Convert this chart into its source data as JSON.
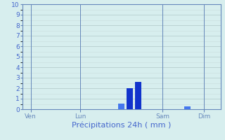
{
  "xlabel": "Précipitations 24h ( mm )",
  "ylim": [
    0,
    10
  ],
  "yticks": [
    0,
    1,
    2,
    3,
    4,
    5,
    6,
    7,
    8,
    9,
    10
  ],
  "background_color": "#d7eeee",
  "grid_color": "#b0c8c8",
  "grid_color_minor": "#c8dcdc",
  "text_color": "#4466cc",
  "spine_color": "#6688bb",
  "total_bars": 24,
  "xtick_labels": [
    "Ven",
    "Lun",
    "Sam",
    "Dim"
  ],
  "xtick_positions": [
    1,
    7,
    17,
    22
  ],
  "vline_positions": [
    1,
    7,
    17,
    22
  ],
  "bars": [
    {
      "x": 12,
      "height": 0.55,
      "color": "#4477ee"
    },
    {
      "x": 13,
      "height": 2.0,
      "color": "#1133cc"
    },
    {
      "x": 14,
      "height": 2.6,
      "color": "#1133cc"
    },
    {
      "x": 20,
      "height": 0.3,
      "color": "#4477ee"
    }
  ],
  "bar_width": 0.8,
  "xlabel_fontsize": 8,
  "tick_fontsize": 6.5
}
